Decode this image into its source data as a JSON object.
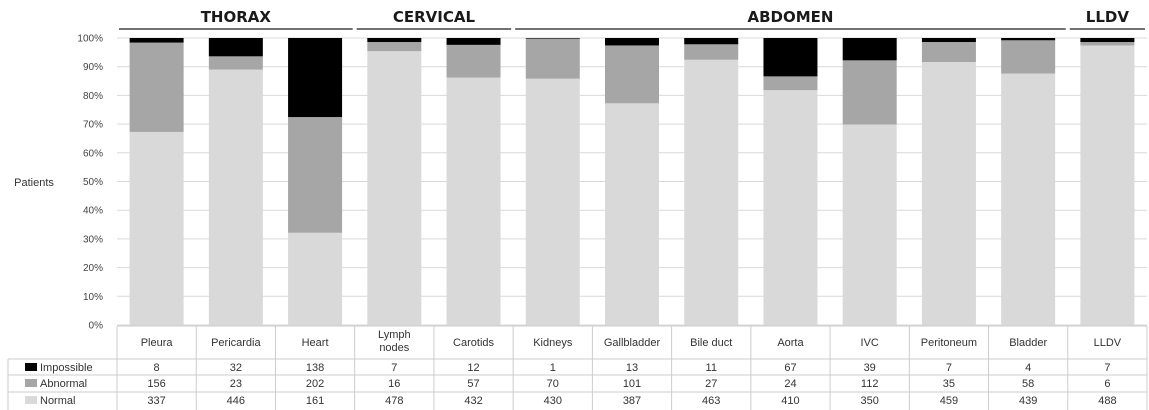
{
  "chart_data": {
    "type": "bar",
    "stacked": "percent",
    "ylabel": "Patients",
    "ylim": [
      0,
      100
    ],
    "yticks": [
      "0%",
      "10%",
      "20%",
      "30%",
      "40%",
      "50%",
      "60%",
      "70%",
      "80%",
      "90%",
      "100%"
    ],
    "grid": true,
    "groups": [
      {
        "label": "THORAX",
        "start": 0,
        "end": 2
      },
      {
        "label": "CERVICAL",
        "start": 3,
        "end": 4
      },
      {
        "label": "ABDOMEN",
        "start": 5,
        "end": 11
      },
      {
        "label": "LLDV",
        "start": 12,
        "end": 12
      }
    ],
    "categories": [
      "Pleura",
      "Pericardia",
      "Heart",
      "Lymph nodes",
      "Carotids",
      "Kidneys",
      "Gallbladder",
      "Bile duct",
      "Aorta",
      "IVC",
      "Peritoneum",
      "Bladder",
      "LLDV"
    ],
    "category_lines": [
      [
        "Pleura"
      ],
      [
        "Pericardia"
      ],
      [
        "Heart"
      ],
      [
        "Lymph",
        "nodes"
      ],
      [
        "Carotids"
      ],
      [
        "Kidneys"
      ],
      [
        "Gallbladder"
      ],
      [
        "Bile duct"
      ],
      [
        "Aorta"
      ],
      [
        "IVC"
      ],
      [
        "Peritoneum"
      ],
      [
        "Bladder"
      ],
      [
        "LLDV"
      ]
    ],
    "series": [
      {
        "name": "Impossible",
        "color": "#000000",
        "values": [
          8,
          32,
          138,
          7,
          12,
          1,
          13,
          11,
          67,
          39,
          7,
          4,
          7
        ]
      },
      {
        "name": "Abnormal",
        "color": "#a6a6a6",
        "values": [
          156,
          23,
          202,
          16,
          57,
          70,
          101,
          27,
          24,
          112,
          35,
          58,
          6
        ]
      },
      {
        "name": "Normal",
        "color": "#d9d9d9",
        "values": [
          337,
          446,
          161,
          478,
          432,
          430,
          387,
          463,
          410,
          350,
          459,
          439,
          488
        ]
      }
    ],
    "stack_order": [
      "Normal",
      "Abnormal",
      "Impossible"
    ]
  }
}
